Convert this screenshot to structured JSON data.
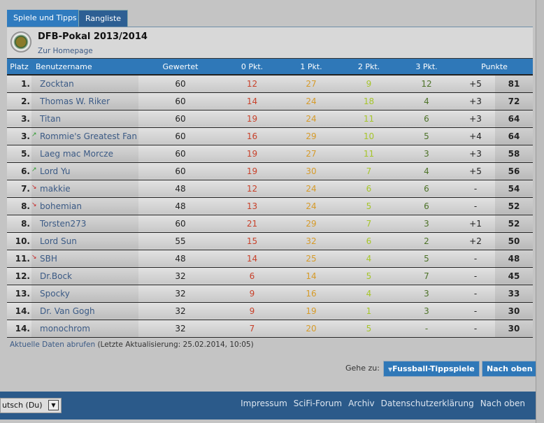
{
  "tabs": [
    "Spiele und Tipps",
    "Rangliste"
  ],
  "header": {
    "title": "DFB-Pokal 2013/2014",
    "homepage": "Zur Homepage"
  },
  "columns": [
    "Platz",
    "Benutzername",
    "Gewertet",
    "0 Pkt.",
    "1 Pkt.",
    "2 Pkt.",
    "3 Pkt.",
    "Punkte"
  ],
  "rows": [
    [
      "1.",
      "",
      "Zocktan",
      "60",
      "12",
      "27",
      "9",
      "12",
      "+5",
      "81"
    ],
    [
      "2.",
      "",
      "Thomas W. Riker",
      "60",
      "14",
      "24",
      "18",
      "4",
      "+3",
      "72"
    ],
    [
      "3.",
      "",
      "Titan",
      "60",
      "19",
      "24",
      "11",
      "6",
      "+3",
      "64"
    ],
    [
      "3.",
      "up",
      "Rommie's Greatest Fan",
      "60",
      "16",
      "29",
      "10",
      "5",
      "+4",
      "64"
    ],
    [
      "5.",
      "",
      "Laeg mac Morcze",
      "60",
      "19",
      "27",
      "11",
      "3",
      "+3",
      "58"
    ],
    [
      "6.",
      "up",
      "Lord Yu",
      "60",
      "19",
      "30",
      "7",
      "4",
      "+5",
      "56"
    ],
    [
      "7.",
      "down",
      "makkie",
      "48",
      "12",
      "24",
      "6",
      "6",
      "-",
      "54"
    ],
    [
      "8.",
      "down",
      "bohemian",
      "48",
      "13",
      "24",
      "5",
      "6",
      "-",
      "52"
    ],
    [
      "8.",
      "",
      "Torsten273",
      "60",
      "21",
      "29",
      "7",
      "3",
      "+1",
      "52"
    ],
    [
      "10.",
      "",
      "Lord Sun",
      "55",
      "15",
      "32",
      "6",
      "2",
      "+2",
      "50"
    ],
    [
      "11.",
      "down",
      "SBH",
      "48",
      "14",
      "25",
      "4",
      "5",
      "-",
      "48"
    ],
    [
      "12.",
      "",
      "Dr.Bock",
      "32",
      "6",
      "14",
      "5",
      "7",
      "-",
      "45"
    ],
    [
      "13.",
      "",
      "Spocky",
      "32",
      "9",
      "16",
      "4",
      "3",
      "-",
      "33"
    ],
    [
      "14.",
      "",
      "Dr. Van Gogh",
      "32",
      "9",
      "19",
      "1",
      "3",
      "-",
      "30"
    ],
    [
      "14.",
      "",
      "monochrom",
      "32",
      "7",
      "20",
      "5",
      "-",
      "-",
      "30"
    ]
  ],
  "update": {
    "link": "Aktuelle Daten abrufen",
    "text": "(Letzte Aktualisierung: 25.02.2014, 10:05)"
  },
  "goto": {
    "label": "Gehe zu:",
    "forum": "Fussball-Tippspiele",
    "top": "Nach oben"
  },
  "footer": {
    "language": "utsch (Du)",
    "links": [
      "Impressum",
      "SciFi-Forum",
      "Archiv",
      "Datenschutzerklärung",
      "Nach oben"
    ]
  }
}
